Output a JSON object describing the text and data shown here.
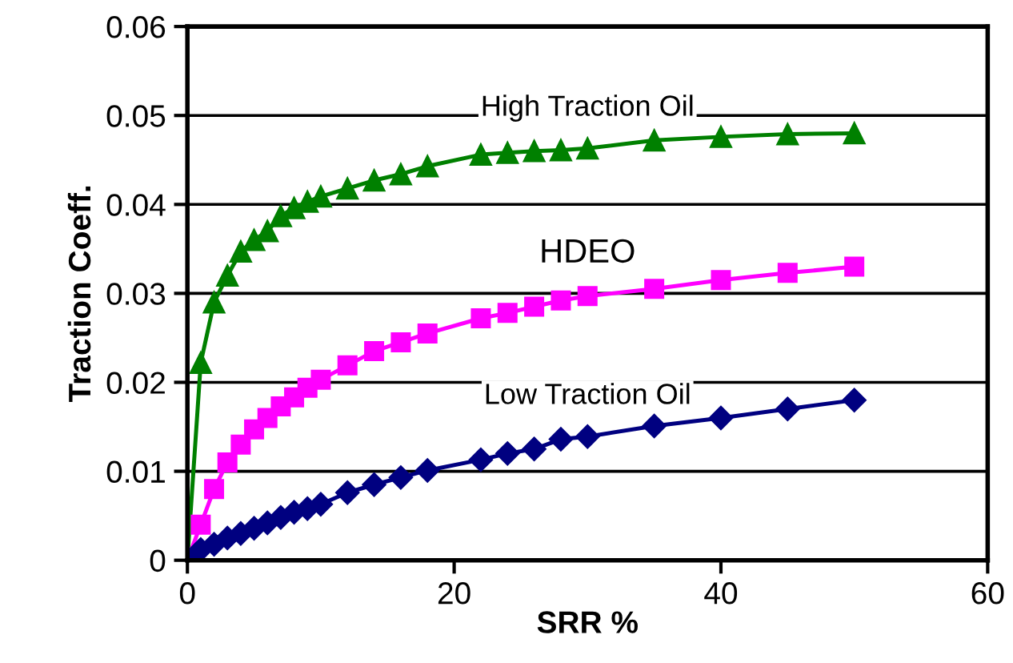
{
  "chart_data": {
    "type": "line",
    "xlabel": "SRR %",
    "ylabel": "Traction Coeff.",
    "xlim": [
      0,
      60
    ],
    "xticks": [
      0,
      20,
      40,
      60
    ],
    "ylim": [
      0,
      0.06
    ],
    "yticks": [
      0,
      0.01,
      0.02,
      0.03,
      0.04,
      0.05,
      0.06
    ],
    "grid": "y",
    "legend": false,
    "x": [
      0,
      1,
      2,
      3,
      4,
      5,
      6,
      7,
      8,
      9,
      10,
      12,
      14,
      16,
      18,
      22,
      24,
      26,
      28,
      30,
      35,
      40,
      45,
      50
    ],
    "series": [
      {
        "name": "High Traction Oil",
        "color": "#008000",
        "marker": "triangle",
        "values": [
          0,
          0.0222,
          0.029,
          0.032,
          0.0347,
          0.036,
          0.037,
          0.0387,
          0.0396,
          0.0403,
          0.0409,
          0.0418,
          0.0427,
          0.0434,
          0.0443,
          0.0456,
          0.0458,
          0.046,
          0.0461,
          0.0463,
          0.0472,
          0.0476,
          0.0479,
          0.048
        ]
      },
      {
        "name": "HDEO",
        "color": "#ff00ff",
        "marker": "square",
        "values": [
          0,
          0.004,
          0.008,
          0.011,
          0.013,
          0.0147,
          0.016,
          0.0173,
          0.0183,
          0.0194,
          0.0203,
          0.0219,
          0.0235,
          0.0245,
          0.0255,
          0.0272,
          0.0278,
          0.0285,
          0.0292,
          0.0297,
          0.0305,
          0.0315,
          0.0323,
          0.033
        ]
      },
      {
        "name": "Low Traction Oil",
        "color": "#000080",
        "marker": "diamond",
        "values": [
          0,
          0.0012,
          0.0018,
          0.0025,
          0.003,
          0.0036,
          0.0042,
          0.0048,
          0.0054,
          0.0058,
          0.0063,
          0.0076,
          0.0085,
          0.0093,
          0.0101,
          0.0113,
          0.012,
          0.0125,
          0.0136,
          0.0139,
          0.0151,
          0.016,
          0.017,
          0.018
        ]
      }
    ]
  }
}
